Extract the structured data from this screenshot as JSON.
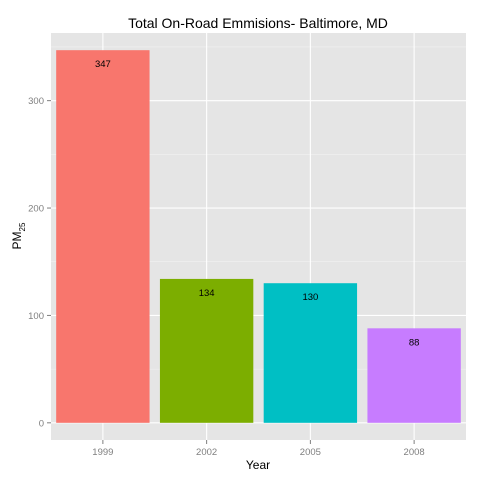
{
  "chart_data": {
    "type": "bar",
    "title": "Total On-Road Emmisions- Baltimore, MD",
    "xlabel": "Year",
    "ylabel": "PM",
    "ylabel_subscript": "25",
    "categories": [
      "1999",
      "2002",
      "2005",
      "2008"
    ],
    "values": [
      347,
      134,
      130,
      88
    ],
    "data_labels": [
      "347",
      "134",
      "130",
      "88"
    ],
    "colors": [
      "#F8766D",
      "#7CAE00",
      "#00BFC4",
      "#C77CFF"
    ],
    "ylim": [
      -16,
      363
    ],
    "yticks": [
      0,
      100,
      200,
      300
    ],
    "ytick_labels": [
      "0",
      "100",
      "200",
      "300"
    ],
    "grid": true,
    "legend": "none",
    "panel_background": "#E5E5E5",
    "grid_color": "#FFFFFF"
  }
}
